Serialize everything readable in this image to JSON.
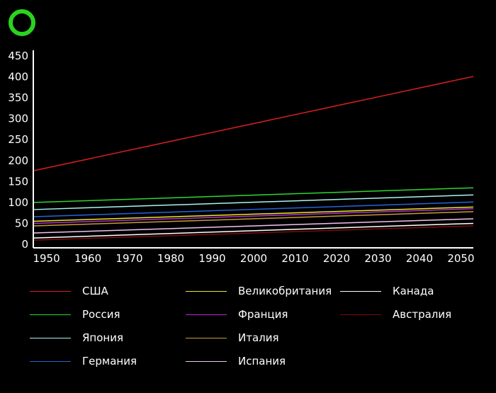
{
  "chart_data": {
    "type": "line",
    "title": "",
    "xlabel": "",
    "ylabel": "",
    "xlim": [
      1947,
      2053
    ],
    "ylim": [
      0,
      450
    ],
    "x_ticks": [
      "1950",
      "1960",
      "1970",
      "1980",
      "1990",
      "2000",
      "2010",
      "2020",
      "2030",
      "2040",
      "2050"
    ],
    "y_ticks": [
      "0",
      "50",
      "100",
      "150",
      "200",
      "250",
      "300",
      "350",
      "400",
      "450"
    ],
    "grid": false,
    "legend_position": "bottom",
    "series": [
      {
        "name": "США",
        "color": "#d3201f",
        "x": [
          1947,
          2053
        ],
        "values": [
          176,
          401
        ]
      },
      {
        "name": "Россия",
        "color": "#2fd534",
        "x": [
          1947,
          2053
        ],
        "values": [
          100,
          135
        ]
      },
      {
        "name": "Япония",
        "color": "#a9f4f0",
        "x": [
          1947,
          2053
        ],
        "values": [
          83,
          118
        ]
      },
      {
        "name": "Германия",
        "color": "#2465d8",
        "x": [
          1947,
          2053
        ],
        "values": [
          66,
          101
        ]
      },
      {
        "name": "Великобритания",
        "color": "#f0e629",
        "x": [
          1947,
          2053
        ],
        "values": [
          55,
          89
        ]
      },
      {
        "name": "Франция",
        "color": "#b533c8",
        "x": [
          1947,
          2053
        ],
        "values": [
          50,
          85
        ]
      },
      {
        "name": "Италия",
        "color": "#c79a3b",
        "x": [
          1947,
          2053
        ],
        "values": [
          44,
          78
        ]
      },
      {
        "name": "Испания",
        "color": "#f2c2f0",
        "x": [
          1947,
          2053
        ],
        "values": [
          27,
          61
        ]
      },
      {
        "name": "Канада",
        "color": "#ffffff",
        "x": [
          1947,
          2053
        ],
        "values": [
          15,
          50
        ]
      },
      {
        "name": "Австралия",
        "color": "#7a0d0d",
        "x": [
          1947,
          2053
        ],
        "values": [
          10,
          44
        ]
      }
    ]
  }
}
